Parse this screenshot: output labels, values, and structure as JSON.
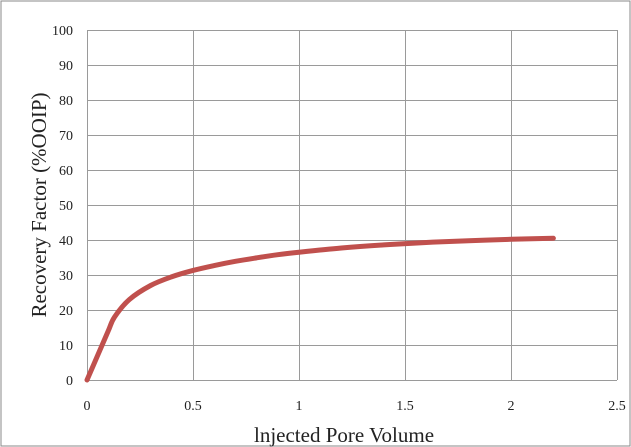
{
  "chart_data": {
    "type": "line",
    "title": "",
    "xlabel": "lnjected Pore Volume",
    "ylabel": "Recovery Factor (%OOIP)",
    "xlim": [
      0,
      2.5
    ],
    "ylim": [
      0,
      100
    ],
    "x_ticks": [
      0,
      0.5,
      1,
      1.5,
      2,
      2.5
    ],
    "x_tick_labels": [
      "0",
      "0.5",
      "1",
      "1.5",
      "2",
      "2.5"
    ],
    "y_ticks": [
      0,
      10,
      20,
      30,
      40,
      50,
      60,
      70,
      80,
      90,
      100
    ],
    "y_tick_labels": [
      "0",
      "10",
      "20",
      "30",
      "40",
      "50",
      "60",
      "70",
      "80",
      "90",
      "100"
    ],
    "grid": true,
    "legend": "none",
    "series": [
      {
        "color": "#c0504d",
        "x": [
          0,
          0.05,
          0.1,
          0.13,
          0.2,
          0.3,
          0.4,
          0.5,
          0.6,
          0.7,
          0.8,
          0.9,
          1.0,
          1.2,
          1.4,
          1.6,
          1.8,
          2.0,
          2.2
        ],
        "y": [
          0,
          7,
          14,
          18,
          23,
          27,
          29.5,
          31.3,
          32.7,
          33.9,
          34.9,
          35.8,
          36.5,
          37.7,
          38.6,
          39.3,
          39.8,
          40.2,
          40.5
        ]
      }
    ]
  }
}
